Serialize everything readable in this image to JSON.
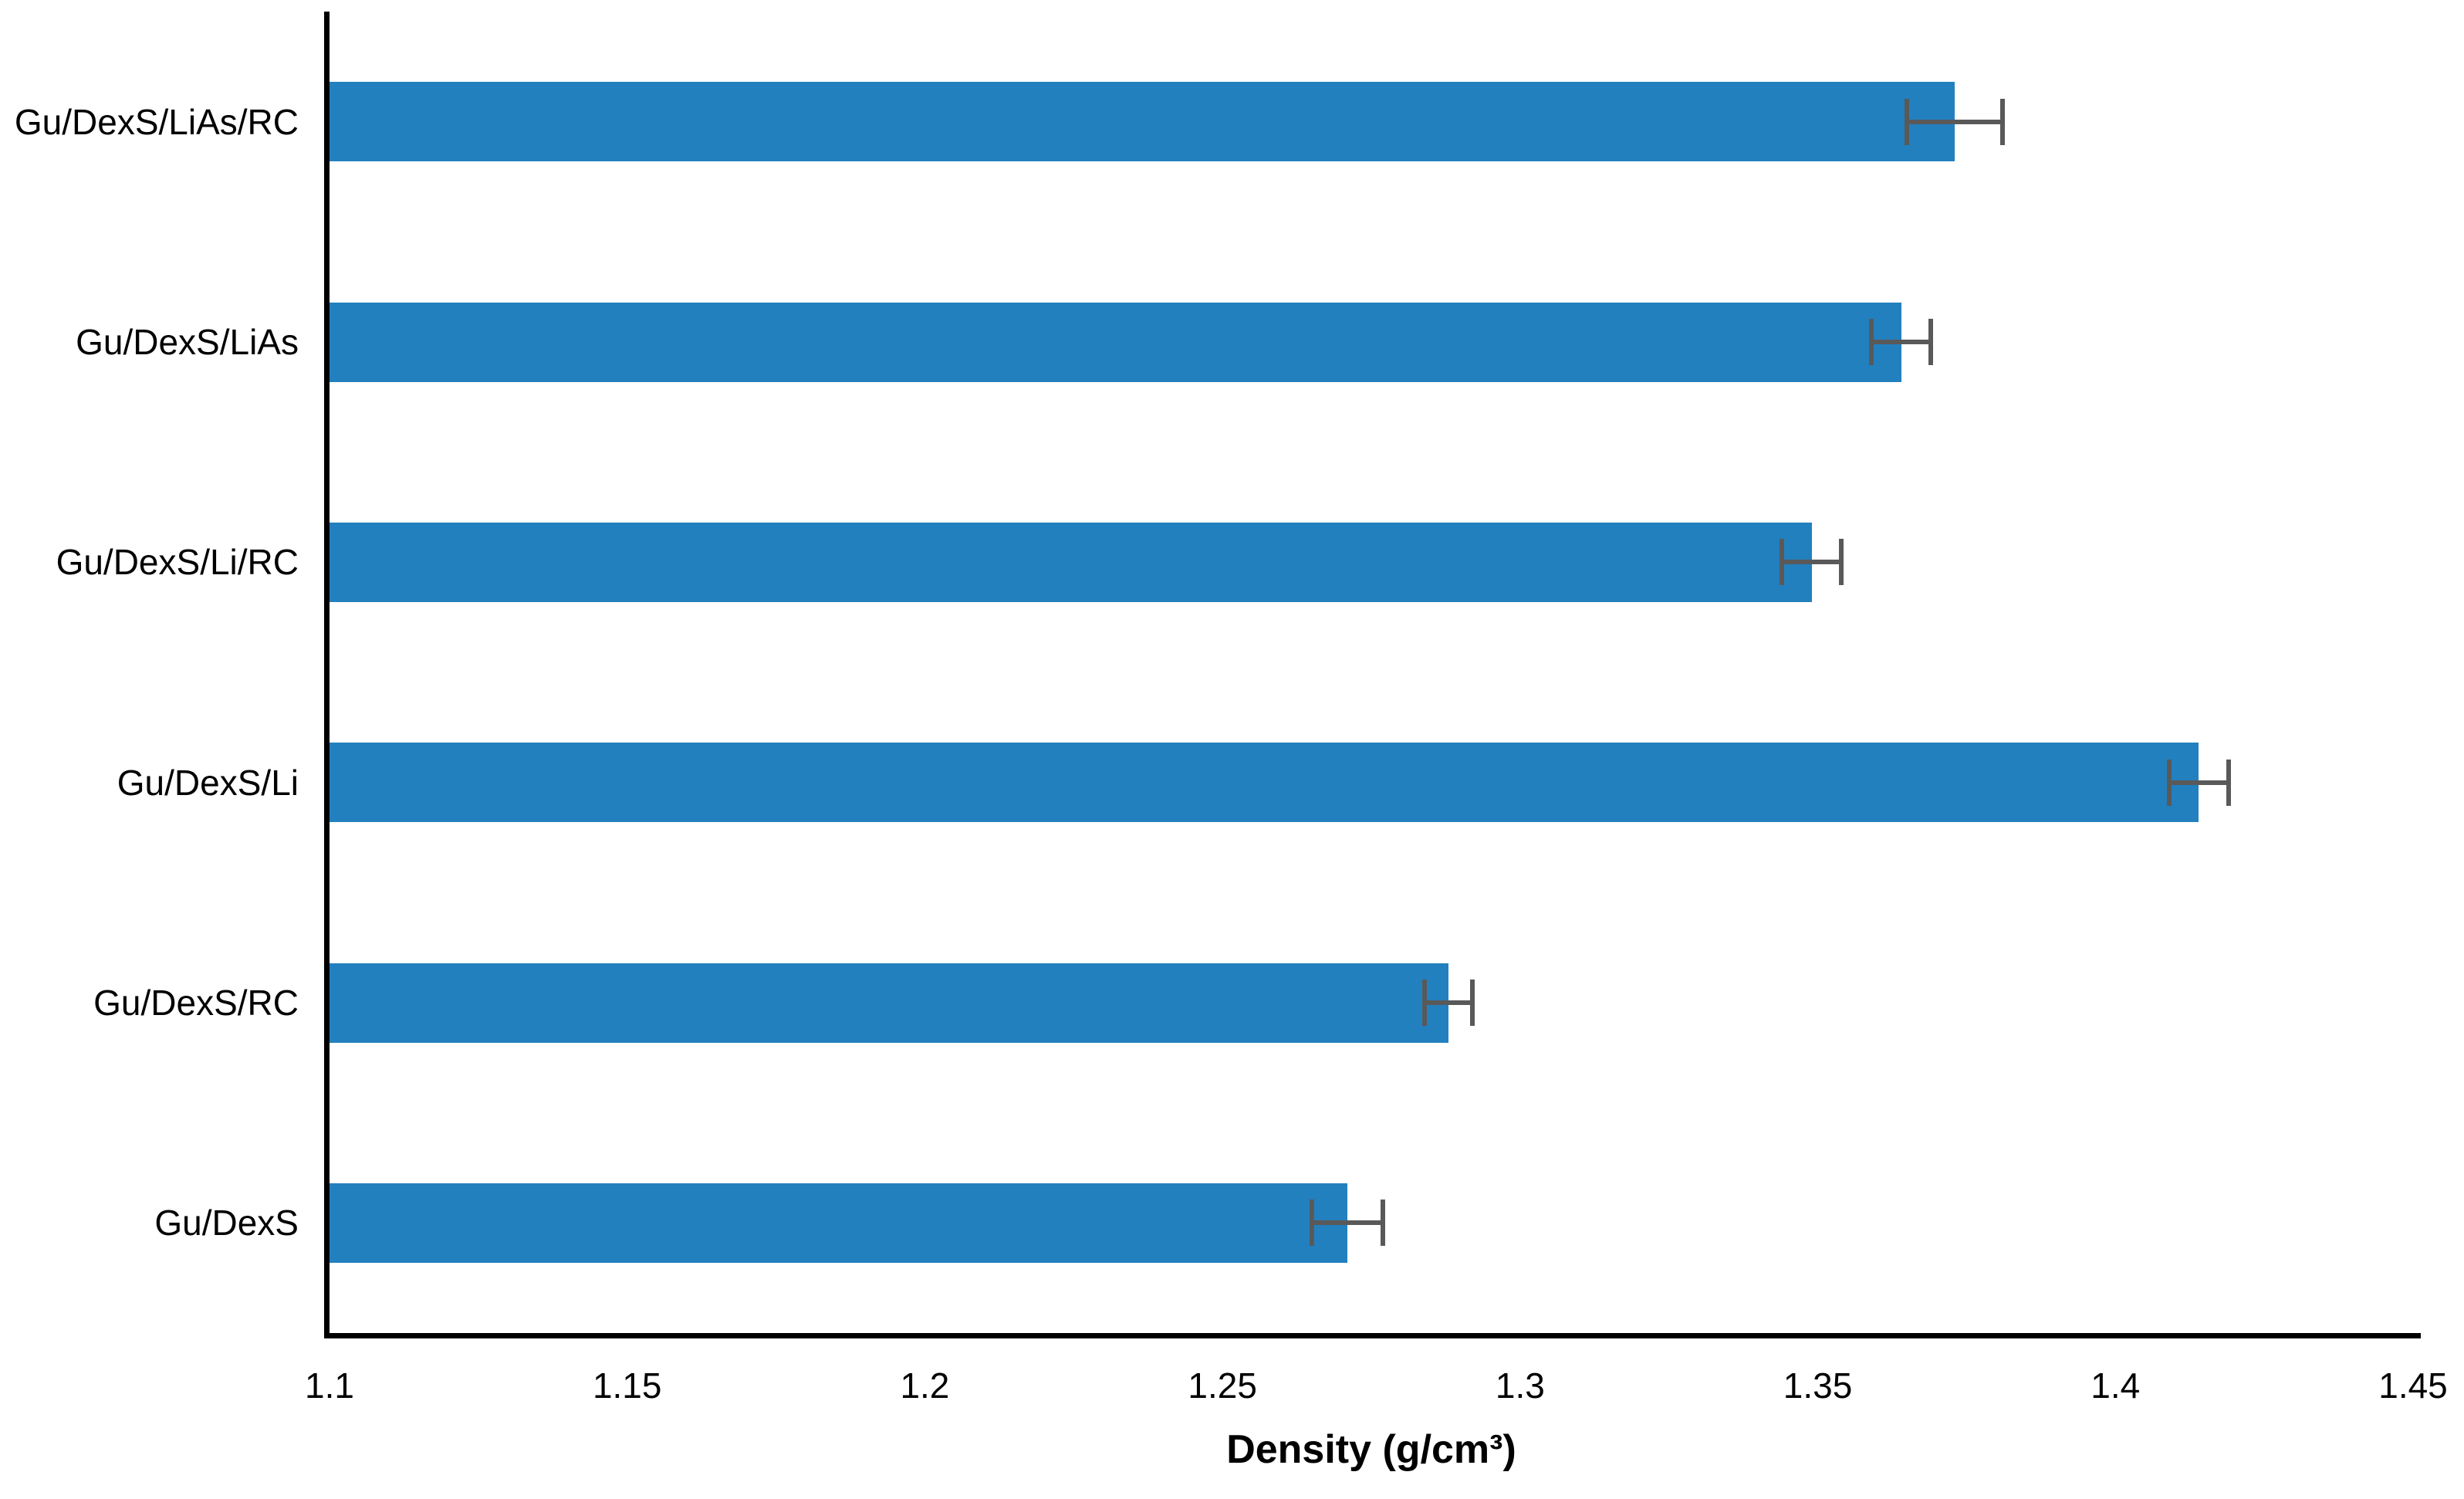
{
  "chart_data": {
    "type": "bar",
    "orientation": "horizontal",
    "title": "",
    "xlabel": "Density (g/cm³)",
    "ylabel": "",
    "categories": [
      "Gu/DexS/LiAs/RC",
      "Gu/DexS/LiAs",
      "Gu/DexS/Li/RC",
      "Gu/DexS/Li",
      "Gu/DexS/RC",
      "Gu/DexS"
    ],
    "values": [
      1.373,
      1.364,
      1.349,
      1.414,
      1.288,
      1.271
    ],
    "error_bars": [
      0.008,
      0.005,
      0.005,
      0.005,
      0.004,
      0.006
    ],
    "xlim": [
      1.1,
      1.45
    ],
    "x_tick_values": [
      1.1,
      1.15,
      1.2,
      1.25,
      1.3,
      1.35,
      1.4,
      1.45
    ],
    "x_tick_labels": [
      "1.1",
      "1.15",
      "1.2",
      "1.25",
      "1.3",
      "1.35",
      "1.4",
      "1.45"
    ],
    "grid": "off",
    "legend": "none",
    "colors": {
      "bar": "#2380BE",
      "error_bar": "#595959",
      "axis": "#000000",
      "text": "#000000",
      "background": "#FFFFFF"
    }
  }
}
